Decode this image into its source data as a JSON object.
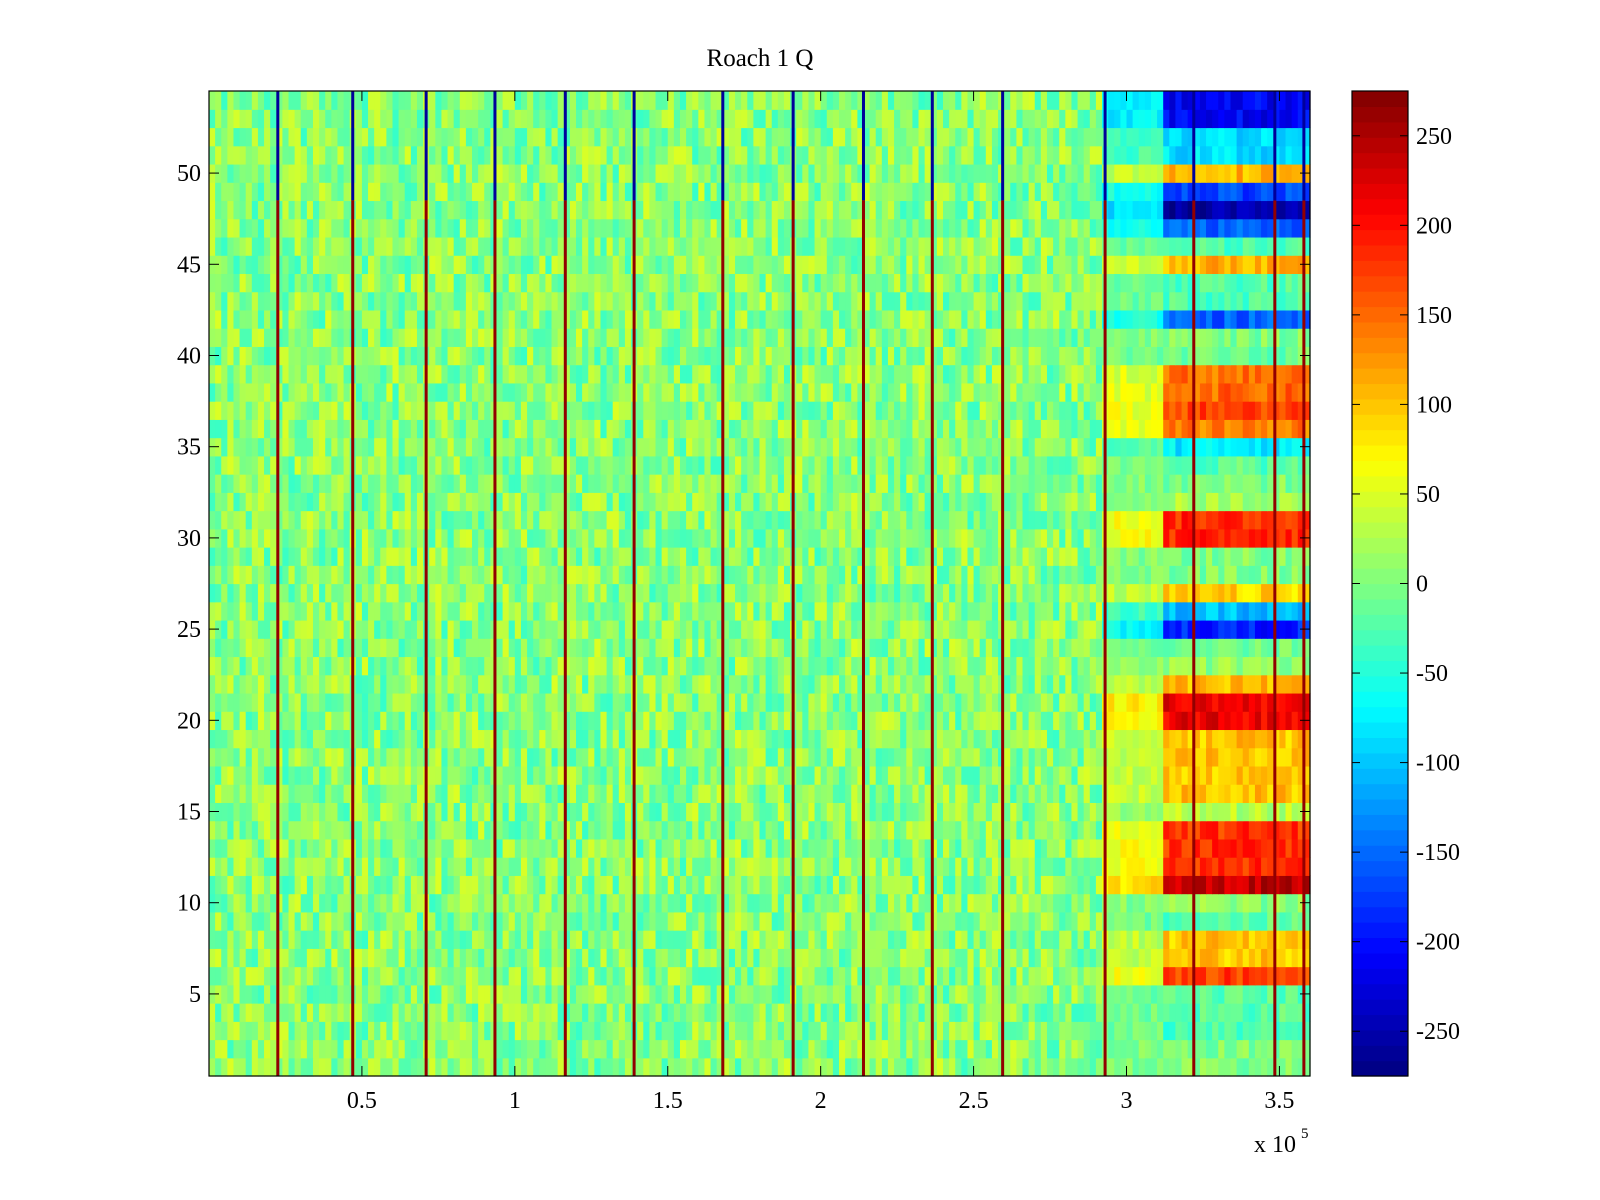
{
  "chart_data": {
    "type": "heatmap",
    "title": "Roach 1 Q",
    "xlabel": "",
    "ylabel": "",
    "x_range": [
      0,
      3.6
    ],
    "x_multiplier_label": "x 10",
    "x_multiplier_exponent": "5",
    "y_range": [
      0.5,
      54.5
    ],
    "x_ticks": [
      0.5,
      1,
      1.5,
      2,
      2.5,
      3,
      3.5
    ],
    "x_tick_labels": [
      "0.5",
      "1",
      "1.5",
      "2",
      "2.5",
      "3",
      "3.5"
    ],
    "y_ticks": [
      5,
      10,
      15,
      20,
      25,
      30,
      35,
      40,
      45,
      50
    ],
    "y_tick_labels": [
      "5",
      "10",
      "15",
      "20",
      "25",
      "30",
      "35",
      "40",
      "45",
      "50"
    ],
    "rows": 54,
    "colormap": "jet",
    "clim": [
      -275,
      275
    ],
    "colorbar_ticks": [
      250,
      200,
      150,
      100,
      50,
      0,
      -50,
      -100,
      -150,
      -200,
      -250
    ],
    "colorbar_tick_labels": [
      "250",
      "200",
      "150",
      "100",
      "50",
      "0",
      "-50",
      "-100",
      "-150",
      "-200",
      "-250"
    ],
    "background_value_range": [
      -40,
      50
    ],
    "spike_columns_x": [
      0.225,
      0.47,
      0.71,
      0.935,
      1.165,
      1.39,
      1.68,
      1.91,
      2.14,
      2.365,
      2.595,
      2.93,
      3.22,
      3.485,
      3.58
    ],
    "spike_values": {
      "upper_rows_above_48": -260,
      "lower_rows": 265
    },
    "transition_region_x": [
      2.93,
      3.12
    ],
    "high_value_region_x": [
      3.12,
      3.6
    ],
    "row_values_high_region": [
      {
        "rows": [
          1,
          2
        ],
        "value": 0
      },
      {
        "rows": [
          3,
          3
        ],
        "value": -30
      },
      {
        "rows": [
          4,
          5
        ],
        "value": -20
      },
      {
        "rows": [
          6,
          6
        ],
        "value": 175
      },
      {
        "rows": [
          7,
          8
        ],
        "value": 100
      },
      {
        "rows": [
          9,
          9
        ],
        "value": -20
      },
      {
        "rows": [
          10,
          10
        ],
        "value": 5
      },
      {
        "rows": [
          11,
          11
        ],
        "value": 240
      },
      {
        "rows": [
          12,
          14
        ],
        "value": 180
      },
      {
        "rows": [
          15,
          15
        ],
        "value": 30
      },
      {
        "rows": [
          16,
          19
        ],
        "value": 100
      },
      {
        "rows": [
          20,
          21
        ],
        "value": 215
      },
      {
        "rows": [
          22,
          22
        ],
        "value": 105
      },
      {
        "rows": [
          23,
          23
        ],
        "value": 10
      },
      {
        "rows": [
          24,
          24
        ],
        "value": -10
      },
      {
        "rows": [
          25,
          25
        ],
        "value": -190
      },
      {
        "rows": [
          26,
          26
        ],
        "value": -105
      },
      {
        "rows": [
          27,
          27
        ],
        "value": 90
      },
      {
        "rows": [
          28,
          29
        ],
        "value": 0
      },
      {
        "rows": [
          30,
          31
        ],
        "value": 185
      },
      {
        "rows": [
          32,
          32
        ],
        "value": 20
      },
      {
        "rows": [
          33,
          33
        ],
        "value": 0
      },
      {
        "rows": [
          34,
          34
        ],
        "value": -20
      },
      {
        "rows": [
          35,
          35
        ],
        "value": -80
      },
      {
        "rows": [
          36,
          36
        ],
        "value": 140
      },
      {
        "rows": [
          37,
          37
        ],
        "value": 170
      },
      {
        "rows": [
          38,
          38
        ],
        "value": 150
      },
      {
        "rows": [
          39,
          39
        ],
        "value": 145
      },
      {
        "rows": [
          40,
          40
        ],
        "value": -10
      },
      {
        "rows": [
          41,
          41
        ],
        "value": 0
      },
      {
        "rows": [
          42,
          42
        ],
        "value": -155
      },
      {
        "rows": [
          43,
          44
        ],
        "value": -25
      },
      {
        "rows": [
          45,
          45
        ],
        "value": 110
      },
      {
        "rows": [
          46,
          46
        ],
        "value": -30
      },
      {
        "rows": [
          47,
          47
        ],
        "value": -150
      },
      {
        "rows": [
          48,
          48
        ],
        "value": -255
      },
      {
        "rows": [
          49,
          49
        ],
        "value": -170
      },
      {
        "rows": [
          50,
          50
        ],
        "value": 110
      },
      {
        "rows": [
          51,
          52
        ],
        "value": -85
      },
      {
        "rows": [
          53,
          54
        ],
        "value": -210
      }
    ]
  }
}
